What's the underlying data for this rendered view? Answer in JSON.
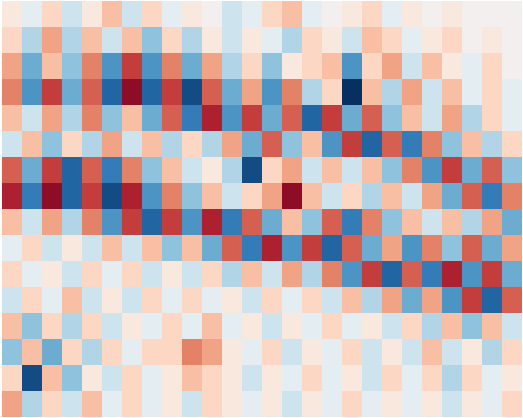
{
  "chart_data": {
    "type": "heatmap",
    "color": "RdBu",
    "tick_labels": false,
    "value_range": [
      -1,
      1
    ],
    "cells": [
      [
        0.1,
        -0.1,
        0.2,
        -0.2,
        0.1,
        0.3,
        -0.2,
        0.2,
        -0.1,
        0.1,
        0,
        -0.2,
        -0.1,
        0.2,
        0.3,
        -0.1,
        0,
        0.1,
        0.2,
        -0.1,
        0.1,
        0,
        0.1,
        0,
        0,
        0
      ],
      [
        0.2,
        -0.3,
        0.4,
        -0.3,
        0.3,
        -0.2,
        0.3,
        -0.4,
        0.2,
        -0.3,
        0.1,
        -0.2,
        0.1,
        -0.1,
        -0.3,
        0.2,
        0.1,
        -0.2,
        0.3,
        0.2,
        -0.1,
        0.1,
        0.2,
        0,
        0.1,
        0
      ],
      [
        0.4,
        -0.5,
        0.3,
        -0.4,
        0.5,
        -0.6,
        0.7,
        -0.6,
        0.5,
        -0.5,
        0.4,
        -0.3,
        0.2,
        -0.4,
        0.1,
        0.2,
        0.3,
        -0.6,
        0.2,
        0.4,
        -0.2,
        0.3,
        0.1,
        -0.1,
        0.2,
        0
      ],
      [
        0.5,
        -0.6,
        0.7,
        -0.5,
        0.6,
        -0.8,
        0.9,
        -0.8,
        0.7,
        -0.9,
        0.6,
        -0.5,
        0.4,
        -0.6,
        0.5,
        -0.3,
        0.2,
        -1.0,
        0.3,
        -0.3,
        0.4,
        -0.2,
        0.3,
        -0.1,
        0.2,
        -0.1
      ],
      [
        0.3,
        -0.2,
        0.4,
        -0.3,
        0.5,
        -0.4,
        0.3,
        -0.5,
        0.6,
        -0.7,
        0.8,
        -0.6,
        0.7,
        -0.5,
        0.6,
        -0.8,
        0.7,
        -0.5,
        0.6,
        -0.4,
        0.3,
        -0.2,
        0.4,
        -0.3,
        0.2,
        -0.1
      ],
      [
        -0.2,
        0.3,
        -0.4,
        0.2,
        -0.3,
        0.4,
        -0.2,
        0.3,
        -0.3,
        0.2,
        -0.3,
        0.4,
        -0.5,
        0.6,
        -0.4,
        0.3,
        -0.6,
        0.7,
        -0.8,
        0.6,
        -0.7,
        0.5,
        -0.4,
        0.3,
        -0.3,
        0.2
      ],
      [
        0.6,
        -0.5,
        0.7,
        -0.8,
        0.6,
        -0.7,
        0.5,
        -0.4,
        0.3,
        -0.2,
        0.1,
        -0.3,
        -0.9,
        0.2,
        0.4,
        -0.2,
        0.3,
        -0.2,
        0.3,
        -0.4,
        0.5,
        -0.6,
        0.7,
        -0.5,
        0.6,
        -0.4
      ],
      [
        0.8,
        -0.7,
        0.9,
        -0.8,
        0.7,
        -0.9,
        0.8,
        -0.6,
        0.5,
        -0.4,
        0.3,
        -0.2,
        0.2,
        0.4,
        0.9,
        0.3,
        -0.2,
        0.2,
        -0.3,
        0.3,
        -0.2,
        0.4,
        -0.5,
        0.6,
        -0.7,
        0.5
      ],
      [
        0.3,
        -0.2,
        0.4,
        -0.3,
        0.5,
        -0.6,
        0.7,
        -0.8,
        0.7,
        -0.6,
        0.8,
        -0.7,
        0.6,
        -0.5,
        0.3,
        -0.4,
        0.6,
        -0.7,
        0.5,
        -0.4,
        0.3,
        -0.2,
        0.3,
        -0.3,
        0.4,
        -0.5
      ],
      [
        -0.1,
        0.2,
        -0.2,
        0.1,
        -0.2,
        0.3,
        -0.2,
        0.3,
        -0.4,
        0.3,
        -0.5,
        0.6,
        -0.7,
        0.8,
        -0.6,
        0.7,
        -0.8,
        0.6,
        -0.5,
        0.4,
        -0.6,
        0.5,
        -0.4,
        0.6,
        -0.5,
        0.4
      ],
      [
        0.2,
        -0.1,
        0.1,
        -0.2,
        0.2,
        -0.1,
        0.2,
        -0.2,
        0.1,
        -0.2,
        0.2,
        -0.3,
        0.3,
        -0.2,
        0.4,
        -0.3,
        0.5,
        -0.6,
        0.7,
        -0.8,
        0.6,
        -0.7,
        0.8,
        -0.6,
        0.7,
        -0.5
      ],
      [
        -0.2,
        0.2,
        -0.1,
        0.3,
        -0.2,
        0.1,
        -0.2,
        0.2,
        -0.1,
        0.2,
        -0.1,
        0.1,
        -0.2,
        0.2,
        -0.1,
        0.2,
        -0.2,
        0.3,
        -0.3,
        0.4,
        -0.5,
        0.4,
        -0.6,
        0.7,
        -0.8,
        0.6
      ],
      [
        0.3,
        -0.4,
        0.2,
        -0.3,
        0.2,
        -0.2,
        0.1,
        -0.1,
        0.2,
        -0.1,
        0.3,
        -0.1,
        0.1,
        -0.2,
        0.1,
        -0.1,
        0.2,
        -0.1,
        0.1,
        -0.2,
        0.2,
        -0.3,
        0.3,
        -0.4,
        0.3,
        -0.2
      ],
      [
        -0.4,
        0.3,
        -0.5,
        0.2,
        -0.3,
        0.2,
        -0.1,
        0.2,
        0.2,
        0.5,
        0.4,
        0.1,
        -0.1,
        0.2,
        -0.2,
        0.1,
        -0.1,
        0.2,
        -0.2,
        0.1,
        -0.2,
        0.3,
        -0.2,
        0.1,
        -0.3,
        0.2
      ],
      [
        0.2,
        -0.9,
        0.3,
        -0.4,
        0.1,
        -0.2,
        0.2,
        -0.1,
        0.1,
        0.3,
        0.2,
        0.1,
        -0.2,
        0.1,
        -0.1,
        0.2,
        -0.1,
        0.1,
        -0.2,
        0.2,
        -0.1,
        0.2,
        -0.3,
        0.2,
        -0.1,
        0.1
      ],
      [
        0.4,
        -0.3,
        0.2,
        -0.2,
        0.3,
        -0.1,
        0.2,
        -0.1,
        0.1,
        -0.2,
        0.2,
        0.1,
        -0.1,
        0.1,
        -0.2,
        0.1,
        -0.1,
        0.2,
        -0.1,
        0.1,
        -0.1,
        0.1,
        -0.2,
        0.1,
        -0.1,
        0.2
      ]
    ]
  }
}
